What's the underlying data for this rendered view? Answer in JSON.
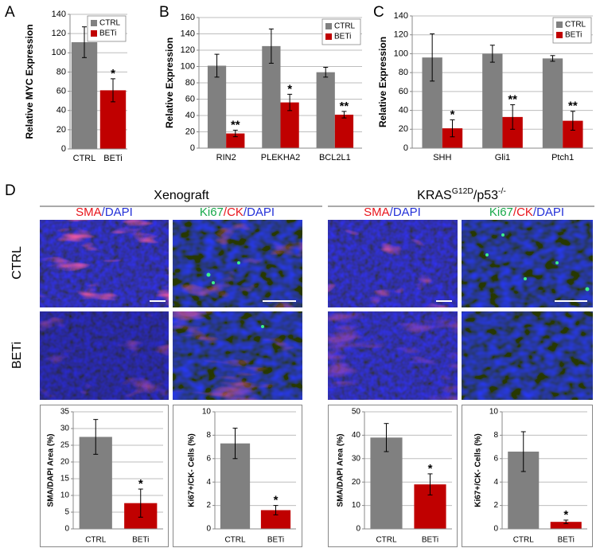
{
  "panel_labels": [
    "A",
    "B",
    "C",
    "D"
  ],
  "chart_data": [
    {
      "type": "bar",
      "ylabel": "Relative MYC Expression",
      "categories": [
        "CTRL",
        "BETi"
      ],
      "series": [
        {
          "values": [
            111,
            61
          ],
          "errors": [
            16,
            12
          ],
          "colors": [
            "#808080",
            "#c00000"
          ],
          "significance": [
            null,
            "*"
          ]
        }
      ],
      "legend": {
        "labels": [
          "CTRL",
          "BETi"
        ],
        "colors": [
          "#808080",
          "#c00000"
        ],
        "position": "upper right"
      },
      "ylim": [
        0,
        140
      ],
      "yticks": [
        0,
        20,
        40,
        60,
        80,
        100,
        120,
        140
      ],
      "grid": true
    },
    {
      "type": "bar",
      "ylabel": "Relative Expression",
      "categories": [
        "RIN2",
        "PLEKHA2",
        "BCL2L1"
      ],
      "series": [
        {
          "name": "CTRL",
          "color": "#808080",
          "values": [
            101,
            125,
            93
          ],
          "errors": [
            14,
            21,
            6
          ]
        },
        {
          "name": "BETi",
          "color": "#c00000",
          "values": [
            18,
            56,
            41
          ],
          "errors": [
            4,
            10,
            4
          ],
          "significance": [
            "**",
            "*",
            "**"
          ]
        }
      ],
      "legend_position": "upper right",
      "ylim": [
        0,
        160
      ],
      "yticks": [
        0,
        20,
        40,
        60,
        80,
        100,
        120,
        140,
        160
      ],
      "grid": true
    },
    {
      "type": "bar",
      "ylabel": "Relative Expression",
      "categories": [
        "SHH",
        "Gli1",
        "Ptch1"
      ],
      "series": [
        {
          "name": "CTRL",
          "color": "#808080",
          "values": [
            96,
            100,
            95
          ],
          "errors": [
            25,
            9,
            3
          ]
        },
        {
          "name": "BETi",
          "color": "#c00000",
          "values": [
            21,
            33,
            29
          ],
          "errors": [
            9,
            13,
            10
          ],
          "significance": [
            "*",
            "**",
            "**"
          ]
        }
      ],
      "legend_position": "upper right",
      "ylim": [
        0,
        140
      ],
      "yticks": [
        0,
        20,
        40,
        60,
        80,
        100,
        120,
        140
      ],
      "grid": true
    },
    {
      "type": "bar",
      "ylabel": "SMA/DAPI Area (%)",
      "categories": [
        "CTRL",
        "BETi"
      ],
      "series": [
        {
          "values": [
            27.5,
            7.7
          ],
          "errors": [
            5.2,
            4.2
          ],
          "colors": [
            "#808080",
            "#c00000"
          ],
          "significance": [
            null,
            "*"
          ]
        }
      ],
      "ylim": [
        0,
        35
      ],
      "yticks": [
        0,
        5,
        10,
        15,
        20,
        25,
        30,
        35
      ],
      "grid": true,
      "frame": true
    },
    {
      "type": "bar",
      "ylabel": "Ki67+/CK- Cells (%)",
      "categories": [
        "CTRL",
        "BETi"
      ],
      "series": [
        {
          "values": [
            7.3,
            1.6
          ],
          "errors": [
            1.3,
            0.4
          ],
          "colors": [
            "#808080",
            "#c00000"
          ],
          "significance": [
            null,
            "*"
          ]
        }
      ],
      "ylim": [
        0,
        10
      ],
      "yticks": [
        0,
        2,
        4,
        6,
        8,
        10
      ],
      "grid": true,
      "frame": true
    },
    {
      "type": "bar",
      "ylabel": "SMA/DAPI Area (%)",
      "categories": [
        "CTRL",
        "BETi"
      ],
      "series": [
        {
          "values": [
            39,
            19
          ],
          "errors": [
            6,
            4.5
          ],
          "colors": [
            "#808080",
            "#c00000"
          ],
          "significance": [
            null,
            "*"
          ]
        }
      ],
      "ylim": [
        0,
        50
      ],
      "yticks": [
        0,
        10,
        20,
        30,
        40,
        50
      ],
      "grid": true,
      "frame": true
    },
    {
      "type": "bar",
      "ylabel": "Ki67+/CK- Cells (%)",
      "categories": [
        "CTRL",
        "BETi"
      ],
      "series": [
        {
          "values": [
            6.6,
            0.6
          ],
          "errors": [
            1.7,
            0.15
          ],
          "colors": [
            "#808080",
            "#c00000"
          ],
          "significance": [
            null,
            "*"
          ]
        }
      ],
      "ylim": [
        0,
        10
      ],
      "yticks": [
        0,
        2,
        4,
        6,
        8,
        10
      ],
      "grid": true,
      "frame": true
    }
  ],
  "microscopy": {
    "rows": [
      "CTRL",
      "BETi"
    ],
    "groups": [
      {
        "title": [
          {
            "text": "Xenograft"
          }
        ],
        "stains": [
          [
            {
              "text": "SMA",
              "color": "#e8141b"
            },
            {
              "text": "/DAPI",
              "color": "#2431d8"
            }
          ],
          [
            {
              "text": "Ki67",
              "color": "#17a84a"
            },
            {
              "text": "/CK",
              "color": "#e8141b"
            },
            {
              "text": "/DAPI",
              "color": "#2431d8"
            }
          ]
        ]
      },
      {
        "title": [
          {
            "text": "KRAS"
          },
          {
            "text": "G12D",
            "sup": true
          },
          {
            "text": "/p53"
          },
          {
            "text": "-/-",
            "sup": true
          }
        ],
        "stains": [
          [
            {
              "text": "SMA",
              "color": "#e8141b"
            },
            {
              "text": "/DAPI",
              "color": "#2431d8"
            }
          ],
          [
            {
              "text": "Ki67",
              "color": "#17a84a"
            },
            {
              "text": "/CK",
              "color": "#e8141b"
            },
            {
              "text": "/DAPI",
              "color": "#2431d8"
            }
          ]
        ]
      }
    ]
  }
}
